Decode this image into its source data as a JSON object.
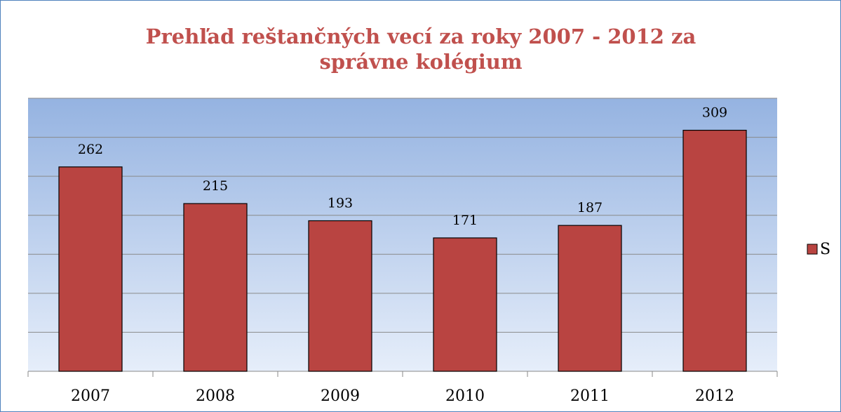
{
  "chart_data": {
    "type": "bar",
    "title": "Prehľad reštančných vecí za roky 2007 - 2012 za správne kolégium",
    "categories": [
      "2007",
      "2008",
      "2009",
      "2010",
      "2011",
      "2012"
    ],
    "series": [
      {
        "name": "S",
        "color": "#b94441",
        "values": [
          262,
          215,
          193,
          171,
          187,
          309
        ]
      }
    ],
    "ylim": [
      0,
      350
    ],
    "yticks": [
      0,
      50,
      100,
      150,
      200,
      250,
      300,
      350
    ],
    "grid": true,
    "legend": "right"
  }
}
